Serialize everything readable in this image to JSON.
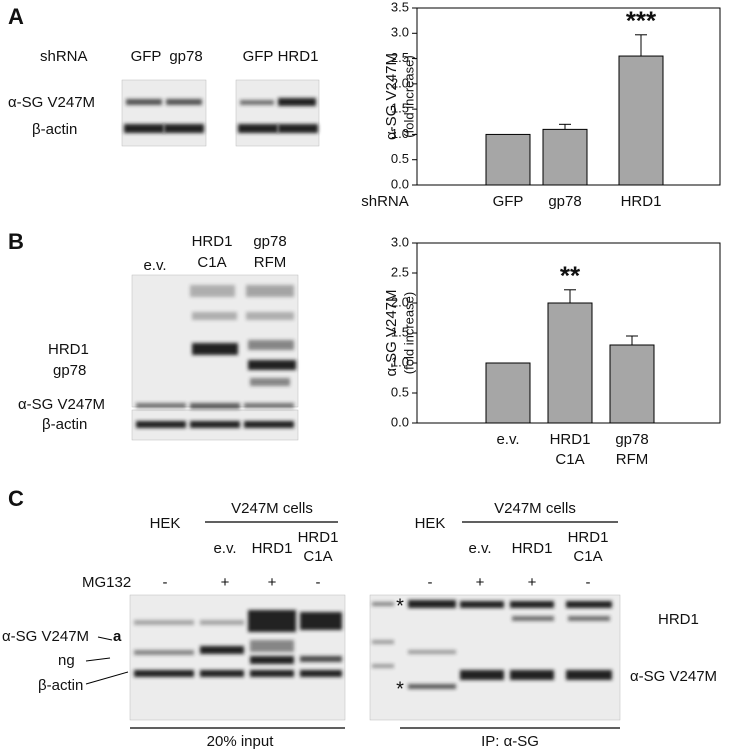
{
  "panel_a": {
    "label": "A",
    "row_label": "shRNA",
    "lanes": [
      "GFP",
      "gp78",
      "GFP",
      "HRD1"
    ],
    "bands": [
      "α-SG V247M",
      "β-actin"
    ]
  },
  "panel_b": {
    "label": "B",
    "lanes": [
      [
        "e.v."
      ],
      [
        "HRD1",
        "C1A"
      ],
      [
        "gp78",
        "RFM"
      ]
    ],
    "bands": [
      "HRD1",
      "gp78",
      "α-SG V247M",
      "β-actin"
    ]
  },
  "panel_c": {
    "label": "C",
    "treatment": "MG132",
    "input": {
      "header": "HEK",
      "group": "V247M cells",
      "lanes": [
        [
          "e.v."
        ],
        [
          "HRD1"
        ],
        [
          "HRD1",
          "C1A"
        ]
      ],
      "signs": [
        "-",
        "+",
        "+",
        "-"
      ],
      "bands": [
        "α-SG V247M",
        "a",
        "ng",
        "β-actin"
      ],
      "caption": "20% input"
    },
    "ip": {
      "header": "HEK",
      "group": "V247M cells",
      "lanes": [
        [
          "e.v."
        ],
        [
          "HRD1"
        ],
        [
          "HRD1",
          "C1A"
        ]
      ],
      "signs": [
        "-",
        "+",
        "+",
        "-"
      ],
      "stars": [
        "*",
        "*"
      ],
      "bands": [
        "HRD1",
        "α-SG V247M"
      ],
      "caption": "IP: α-SG"
    }
  },
  "chart_data": [
    {
      "type": "bar",
      "y_label": [
        "α-SG V247M",
        "(fold increase)"
      ],
      "x_label": "shRNA",
      "categories": [
        "GFP",
        "gp78",
        "HRD1"
      ],
      "values": [
        1.0,
        1.1,
        2.55
      ],
      "errors": [
        null,
        0.1,
        0.42
      ],
      "significance": [
        null,
        null,
        "***"
      ],
      "color": "#a6a6a6",
      "ylim": [
        0,
        3.5
      ],
      "yticks": [
        {
          "value": 0,
          "label": "0.0"
        },
        0.5,
        {
          "value": 1,
          "label": "1.0"
        },
        1.5,
        {
          "value": 2,
          "label": "2.0"
        },
        2.5,
        {
          "value": 3,
          "label": "3.0"
        },
        3.5
      ]
    },
    {
      "type": "bar",
      "y_label": [
        "α-SG V247M",
        "(fold increase)"
      ],
      "categories": [
        [
          "e.v."
        ],
        [
          "HRD1",
          "C1A"
        ],
        [
          "gp78",
          "RFM"
        ]
      ],
      "values": [
        1.0,
        2.0,
        1.3
      ],
      "errors": [
        null,
        0.22,
        0.15
      ],
      "significance": [
        null,
        "**",
        null
      ],
      "color": "#a6a6a6",
      "ylim": [
        0,
        3.0
      ],
      "yticks": [
        {
          "value": 0,
          "label": "0.0"
        },
        0.5,
        {
          "value": 1,
          "label": "1.0"
        },
        1.5,
        {
          "value": 2,
          "label": "2.0"
        },
        2.5,
        {
          "value": 3,
          "label": "3.0"
        }
      ]
    }
  ]
}
